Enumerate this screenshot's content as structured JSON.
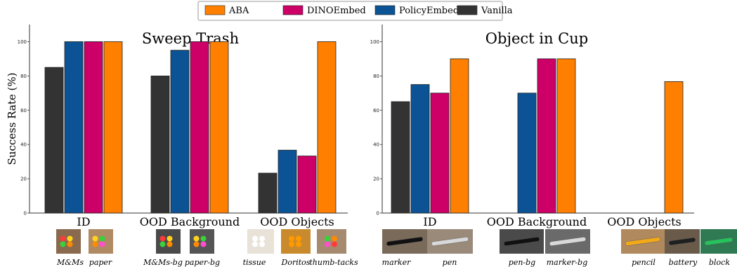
{
  "colors": {
    "ABA": "#ff8000",
    "DINOEmbed": "#cc0066",
    "PolicyEmbed": "#0b5394",
    "Vanilla": "#333333"
  },
  "legend": [
    "ABA",
    "DINOEmbed",
    "PolicyEmbed",
    "Vanilla"
  ],
  "chart_data": [
    {
      "type": "bar",
      "title": "Sweep Trash",
      "ylabel": "Success Rate (%)",
      "ylim": [
        0,
        110
      ],
      "yticks": [
        0,
        20,
        40,
        60,
        80,
        100
      ],
      "categories": [
        "ID",
        "OOD Background",
        "OOD Objects"
      ],
      "series": [
        {
          "name": "Vanilla",
          "values": [
            85,
            80,
            23.3
          ]
        },
        {
          "name": "PolicyEmbed",
          "values": [
            100,
            95,
            36.7
          ]
        },
        {
          "name": "DINOEmbed",
          "values": [
            100,
            100,
            33.3
          ]
        },
        {
          "name": "ABA",
          "values": [
            100,
            100,
            100
          ]
        }
      ],
      "objects": [
        [
          "M&Ms",
          "paper"
        ],
        [
          "M&Ms-bg",
          "paper-bg"
        ],
        [
          "tissue",
          "Doritos",
          "thumb-tacks"
        ]
      ]
    },
    {
      "type": "bar",
      "title": "Object in Cup",
      "ylabel": "",
      "ylim": [
        0,
        110
      ],
      "yticks": [
        0,
        20,
        40,
        60,
        80,
        100
      ],
      "categories": [
        "ID",
        "OOD Background",
        "OOD Objects"
      ],
      "series": [
        {
          "name": "Vanilla",
          "values": [
            65,
            0,
            0
          ]
        },
        {
          "name": "PolicyEmbed",
          "values": [
            75,
            70,
            0
          ]
        },
        {
          "name": "DINOEmbed",
          "values": [
            70,
            90,
            0
          ]
        },
        {
          "name": "ABA",
          "values": [
            90,
            90,
            76.7
          ]
        }
      ],
      "objects": [
        [
          "marker",
          "pen"
        ],
        [
          "pen-bg",
          "marker-bg"
        ],
        [
          "pencil",
          "battery",
          "block"
        ]
      ]
    }
  ]
}
